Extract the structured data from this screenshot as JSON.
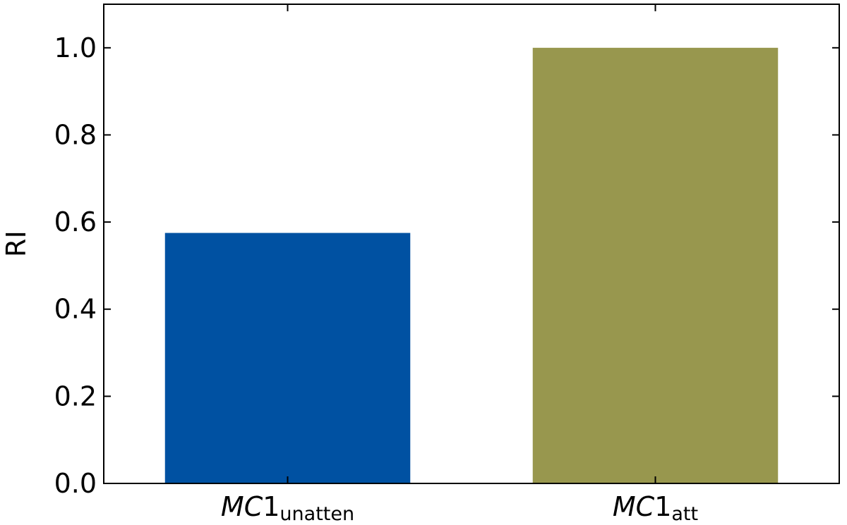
{
  "chart_data": {
    "type": "bar",
    "categories": [
      {
        "main": "MC",
        "num": "1",
        "sub": "unatten"
      },
      {
        "main": "MC",
        "num": "1",
        "sub": "att"
      }
    ],
    "values": [
      0.575,
      1.0
    ],
    "colors": [
      "#0051a2",
      "#98974e"
    ],
    "ylabel": "RI",
    "xlabel": "",
    "ylim": [
      0,
      1.1
    ],
    "yticks": [
      "0.0",
      "0.2",
      "0.4",
      "0.6",
      "0.8",
      "1.0"
    ],
    "ytick_values": [
      0,
      0.2,
      0.4,
      0.6,
      0.8,
      1.0
    ],
    "grid": false
  }
}
